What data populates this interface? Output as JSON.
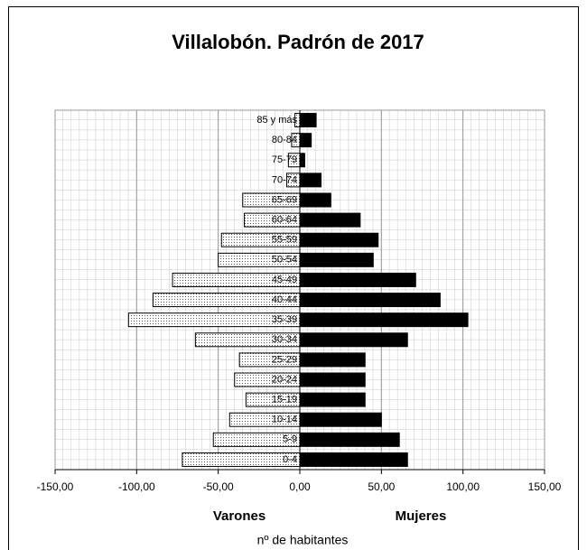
{
  "chart_data": {
    "type": "pyramid",
    "title": "Villalobón. Padrón de 2017",
    "categories": [
      "0-4",
      "5-9",
      "10-14",
      "15-19",
      "20-24",
      "25-29",
      "30-34",
      "35-39",
      "40-44",
      "45-49",
      "50-54",
      "55-59",
      "60-64",
      "65-69",
      "70-74",
      "75-79",
      "80-84",
      "85 y más"
    ],
    "series": [
      {
        "name": "Varones",
        "color": "#ffffff",
        "values": [
          -72,
          -53,
          -43,
          -33,
          -40,
          -37,
          -64,
          -105,
          -90,
          -78,
          -50,
          -48,
          -34,
          -35,
          -8,
          -7,
          -5,
          -3
        ]
      },
      {
        "name": "Mujeres",
        "color": "#000000",
        "values": [
          66,
          61,
          50,
          40,
          40,
          40,
          66,
          103,
          86,
          71,
          45,
          48,
          37,
          19,
          13,
          3,
          7,
          10
        ]
      }
    ],
    "xlabel": "nº de habitantes",
    "xlim": [
      -150,
      150
    ],
    "xticks": [
      {
        "value": -150,
        "label": "-150,00"
      },
      {
        "value": -100,
        "label": "-100,00"
      },
      {
        "value": -50,
        "label": "-50,00"
      },
      {
        "value": 0,
        "label": "0,00"
      },
      {
        "value": 50,
        "label": "50,00"
      },
      {
        "value": 100,
        "label": "100,00"
      },
      {
        "value": 150,
        "label": "150,00"
      }
    ],
    "grid": true
  }
}
